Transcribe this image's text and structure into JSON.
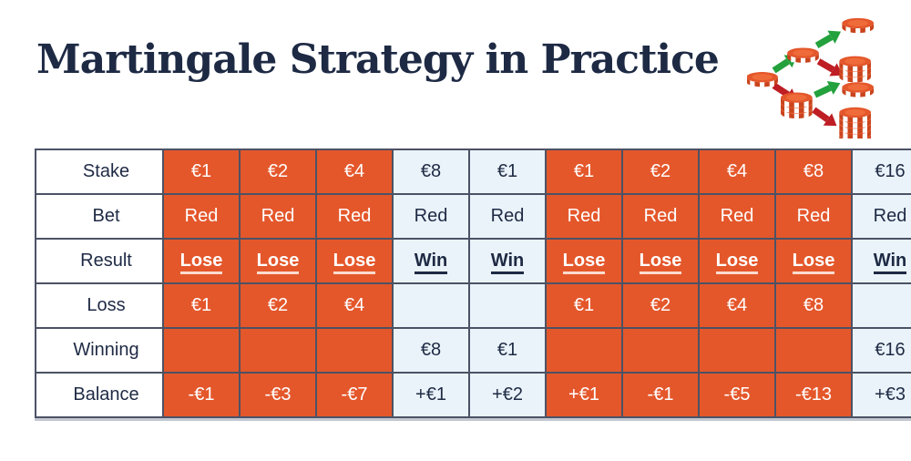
{
  "title": "Martingale Strategy in Practice",
  "icon": {
    "name": "coin-tree-icon",
    "semantics": "branching casino chip stacks with green win arrows and red lose arrows"
  },
  "colors": {
    "lose_cell": "#E4572B",
    "win_cell": "#EAF3FA",
    "text_navy": "#1E2A44",
    "grid_border": "#4C5265",
    "coin_orange": "#E4572B",
    "coin_side": "#C9441D",
    "arrow_green": "#23A13C",
    "arrow_red": "#BE1E24"
  },
  "chart_data": {
    "type": "table",
    "title": "Martingale Strategy in Practice",
    "column_count": 10,
    "column_outcomes": [
      "lose",
      "lose",
      "lose",
      "win",
      "win",
      "lose",
      "lose",
      "lose",
      "lose",
      "win"
    ],
    "rows": [
      {
        "label": "Stake",
        "emphasis": false,
        "cells": [
          "€1",
          "€2",
          "€4",
          "€8",
          "€1",
          "€1",
          "€2",
          "€4",
          "€8",
          "€16"
        ]
      },
      {
        "label": "Bet",
        "emphasis": false,
        "cells": [
          "Red",
          "Red",
          "Red",
          "Red",
          "Red",
          "Red",
          "Red",
          "Red",
          "Red",
          "Red"
        ]
      },
      {
        "label": "Result",
        "emphasis": true,
        "cells": [
          "Lose",
          "Lose",
          "Lose",
          "Win",
          "Win",
          "Lose",
          "Lose",
          "Lose",
          "Lose",
          "Win"
        ]
      },
      {
        "label": "Loss",
        "emphasis": false,
        "cells": [
          "€1",
          "€2",
          "€4",
          "",
          "",
          "€1",
          "€2",
          "€4",
          "€8",
          ""
        ]
      },
      {
        "label": "Winning",
        "emphasis": false,
        "cells": [
          "",
          "",
          "",
          "€8",
          "€1",
          "",
          "",
          "",
          "",
          "€16"
        ]
      },
      {
        "label": "Balance",
        "emphasis": false,
        "cells": [
          "-€1",
          "-€3",
          "-€7",
          "+€1",
          "+€2",
          "+€1",
          "-€1",
          "-€5",
          "-€13",
          "+€3"
        ]
      }
    ]
  }
}
